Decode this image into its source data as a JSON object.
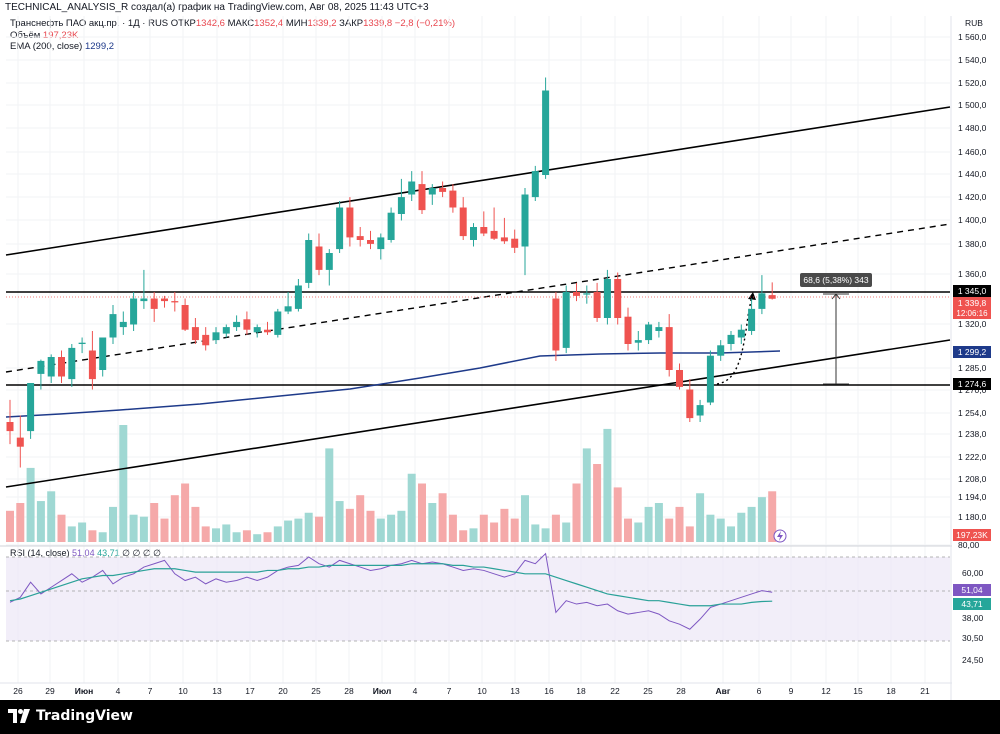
{
  "header": {
    "attribution": "TECHNICAL_ANALYSIS_R создал(а) график на TradingView.com, Авг 08, 2025 11:43 UTC+3"
  },
  "legend": {
    "symbol": "Транснефть ПАО акц.пр. · 1Д · RUS",
    "open_label": "ОТКР",
    "open_value": "1342,6",
    "high_label": "МАКС",
    "high_value": "1352,4",
    "low_label": "МИН",
    "low_value": "1339,2",
    "close_label": "ЗАКР",
    "close_value": "1339,8",
    "change": "−2,8 (−0,21%)",
    "volume_label": "Объём",
    "volume_value": "197,23K",
    "ema_label": "EMA (200, close)",
    "ema_value": "1299,2",
    "rsi_label": "RSI (14, close)",
    "rsi_value1": "51,04",
    "rsi_value2": "43,71",
    "rsi_na": "∅ ∅ ∅ ∅"
  },
  "price_axis": {
    "currency": "RUB",
    "ticks": [
      "1 560,0",
      "1 540,0",
      "1 520,0",
      "1 500,0",
      "1 480,0",
      "1 460,0",
      "1 440,0",
      "1 420,0",
      "1 400,0",
      "1 380,0",
      "1 360,0",
      "1 320,0",
      "1 285,0",
      "1 270,0",
      "1 254,0",
      "1 238,0",
      "1 222,0",
      "1 208,0",
      "1 194,0",
      "1 180,0",
      "80,00"
    ],
    "labels": {
      "level_high": "1 345,0",
      "last_price": "1 339,8",
      "countdown": "12:06:16",
      "ema": "1 299,2",
      "level_low": "1 274,6",
      "volume": "197,23K"
    }
  },
  "rsi_axis": {
    "ticks": [
      "60,00",
      "51,04",
      "43,71",
      "38,00",
      "30,50",
      "24,50"
    ]
  },
  "time_axis": {
    "labels": [
      "26",
      "29",
      "Июн",
      "4",
      "7",
      "10",
      "13",
      "17",
      "20",
      "25",
      "28",
      "Июл",
      "4",
      "7",
      "10",
      "13",
      "16",
      "18",
      "22",
      "25",
      "28",
      "Авг",
      "6",
      "9",
      "12",
      "15",
      "18",
      "21"
    ]
  },
  "measure_label": "68,6 (5,38%) 343",
  "footer": {
    "brand": "TradingView"
  },
  "colors": {
    "up": "#26a69a",
    "down": "#ef5350",
    "ema": "#1e3a8a",
    "rsi": "#7e57c2",
    "rsi_ma": "#2aa198"
  },
  "chart_data": {
    "type": "candlestick",
    "title": "Транснефть ПАО акц.пр. · 1Д · RUS",
    "ylabel": "RUB",
    "ylim": [
      1160,
      1570
    ],
    "candles": [
      {
        "o": 1245,
        "h": 1262,
        "l": 1228,
        "c": 1238
      },
      {
        "o": 1233,
        "h": 1250,
        "l": 1210,
        "c": 1226
      },
      {
        "o": 1238,
        "h": 1275,
        "l": 1232,
        "c": 1275
      },
      {
        "o": 1282,
        "h": 1293,
        "l": 1270,
        "c": 1292
      },
      {
        "o": 1280,
        "h": 1297,
        "l": 1275,
        "c": 1295
      },
      {
        "o": 1295,
        "h": 1300,
        "l": 1275,
        "c": 1280
      },
      {
        "o": 1278,
        "h": 1305,
        "l": 1272,
        "c": 1302
      },
      {
        "o": 1305,
        "h": 1310,
        "l": 1298,
        "c": 1306
      },
      {
        "o": 1300,
        "h": 1315,
        "l": 1270,
        "c": 1278
      },
      {
        "o": 1285,
        "h": 1310,
        "l": 1280,
        "c": 1310
      },
      {
        "o": 1310,
        "h": 1335,
        "l": 1305,
        "c": 1328
      },
      {
        "o": 1318,
        "h": 1330,
        "l": 1312,
        "c": 1322
      },
      {
        "o": 1320,
        "h": 1345,
        "l": 1315,
        "c": 1340
      },
      {
        "o": 1338,
        "h": 1362,
        "l": 1332,
        "c": 1340
      },
      {
        "o": 1340,
        "h": 1345,
        "l": 1322,
        "c": 1332
      },
      {
        "o": 1340,
        "h": 1342,
        "l": 1333,
        "c": 1338
      },
      {
        "o": 1338,
        "h": 1345,
        "l": 1330,
        "c": 1337
      },
      {
        "o": 1335,
        "h": 1340,
        "l": 1315,
        "c": 1316
      },
      {
        "o": 1318,
        "h": 1325,
        "l": 1305,
        "c": 1308
      },
      {
        "o": 1312,
        "h": 1318,
        "l": 1300,
        "c": 1304
      },
      {
        "o": 1308,
        "h": 1318,
        "l": 1305,
        "c": 1314
      },
      {
        "o": 1313,
        "h": 1320,
        "l": 1310,
        "c": 1318
      },
      {
        "o": 1318,
        "h": 1327,
        "l": 1315,
        "c": 1322
      },
      {
        "o": 1324,
        "h": 1330,
        "l": 1312,
        "c": 1316
      },
      {
        "o": 1314,
        "h": 1320,
        "l": 1310,
        "c": 1318
      },
      {
        "o": 1316,
        "h": 1322,
        "l": 1312,
        "c": 1314
      },
      {
        "o": 1312,
        "h": 1332,
        "l": 1310,
        "c": 1330
      },
      {
        "o": 1330,
        "h": 1345,
        "l": 1328,
        "c": 1334
      },
      {
        "o": 1332,
        "h": 1355,
        "l": 1330,
        "c": 1350
      },
      {
        "o": 1352,
        "h": 1390,
        "l": 1348,
        "c": 1385
      },
      {
        "o": 1380,
        "h": 1390,
        "l": 1358,
        "c": 1362
      },
      {
        "o": 1362,
        "h": 1378,
        "l": 1350,
        "c": 1375
      },
      {
        "o": 1378,
        "h": 1415,
        "l": 1375,
        "c": 1410
      },
      {
        "o": 1410,
        "h": 1418,
        "l": 1380,
        "c": 1387
      },
      {
        "o": 1388,
        "h": 1395,
        "l": 1380,
        "c": 1385
      },
      {
        "o": 1385,
        "h": 1392,
        "l": 1378,
        "c": 1382
      },
      {
        "o": 1378,
        "h": 1390,
        "l": 1370,
        "c": 1387
      },
      {
        "o": 1385,
        "h": 1410,
        "l": 1383,
        "c": 1406
      },
      {
        "o": 1405,
        "h": 1432,
        "l": 1400,
        "c": 1418
      },
      {
        "o": 1420,
        "h": 1438,
        "l": 1415,
        "c": 1430
      },
      {
        "o": 1428,
        "h": 1438,
        "l": 1405,
        "c": 1408
      },
      {
        "o": 1420,
        "h": 1428,
        "l": 1412,
        "c": 1425
      },
      {
        "o": 1425,
        "h": 1430,
        "l": 1418,
        "c": 1422
      },
      {
        "o": 1423,
        "h": 1428,
        "l": 1406,
        "c": 1410
      },
      {
        "o": 1410,
        "h": 1418,
        "l": 1385,
        "c": 1388
      },
      {
        "o": 1385,
        "h": 1398,
        "l": 1380,
        "c": 1395
      },
      {
        "o": 1395,
        "h": 1407,
        "l": 1388,
        "c": 1390
      },
      {
        "o": 1392,
        "h": 1410,
        "l": 1385,
        "c": 1386
      },
      {
        "o": 1387,
        "h": 1402,
        "l": 1382,
        "c": 1384
      },
      {
        "o": 1386,
        "h": 1393,
        "l": 1375,
        "c": 1379
      },
      {
        "o": 1380,
        "h": 1425,
        "l": 1358,
        "c": 1420
      },
      {
        "o": 1418,
        "h": 1442,
        "l": 1415,
        "c": 1438
      },
      {
        "o": 1435,
        "h": 1510,
        "l": 1432,
        "c": 1500
      },
      {
        "o": 1340,
        "h": 1345,
        "l": 1292,
        "c": 1300
      },
      {
        "o": 1302,
        "h": 1350,
        "l": 1298,
        "c": 1345
      },
      {
        "o": 1345,
        "h": 1352,
        "l": 1338,
        "c": 1342
      },
      {
        "o": 1343,
        "h": 1350,
        "l": 1336,
        "c": 1344
      },
      {
        "o": 1345,
        "h": 1352,
        "l": 1322,
        "c": 1325
      },
      {
        "o": 1325,
        "h": 1362,
        "l": 1320,
        "c": 1355
      },
      {
        "o": 1355,
        "h": 1360,
        "l": 1320,
        "c": 1325
      },
      {
        "o": 1326,
        "h": 1333,
        "l": 1300,
        "c": 1305
      },
      {
        "o": 1306,
        "h": 1315,
        "l": 1300,
        "c": 1308
      },
      {
        "o": 1308,
        "h": 1322,
        "l": 1305,
        "c": 1320
      },
      {
        "o": 1315,
        "h": 1322,
        "l": 1310,
        "c": 1318
      },
      {
        "o": 1318,
        "h": 1328,
        "l": 1280,
        "c": 1285
      },
      {
        "o": 1285,
        "h": 1290,
        "l": 1270,
        "c": 1272
      },
      {
        "o": 1270,
        "h": 1278,
        "l": 1245,
        "c": 1248
      },
      {
        "o": 1250,
        "h": 1262,
        "l": 1245,
        "c": 1258
      },
      {
        "o": 1260,
        "h": 1300,
        "l": 1258,
        "c": 1296
      },
      {
        "o": 1296,
        "h": 1308,
        "l": 1292,
        "c": 1304
      },
      {
        "o": 1305,
        "h": 1315,
        "l": 1300,
        "c": 1312
      },
      {
        "o": 1310,
        "h": 1320,
        "l": 1305,
        "c": 1316
      },
      {
        "o": 1315,
        "h": 1340,
        "l": 1312,
        "c": 1332
      },
      {
        "o": 1332,
        "h": 1358,
        "l": 1328,
        "c": 1344
      },
      {
        "o": 1342.6,
        "h": 1352.4,
        "l": 1339.2,
        "c": 1339.8
      }
    ],
    "volume": [
      16,
      20,
      38,
      21,
      26,
      14,
      8,
      10,
      6,
      5,
      18,
      60,
      14,
      13,
      20,
      12,
      24,
      30,
      18,
      8,
      7,
      9,
      5,
      6,
      4,
      5,
      8,
      11,
      12,
      15,
      13,
      48,
      21,
      17,
      24,
      16,
      12,
      14,
      16,
      35,
      30,
      20,
      25,
      14,
      6,
      7,
      14,
      10,
      17,
      12,
      24,
      9,
      7,
      14,
      10,
      30,
      48,
      40,
      58,
      28,
      12,
      10,
      18,
      20,
      12,
      18,
      8,
      25,
      14,
      12,
      8,
      15,
      18,
      23,
      26
    ]
  }
}
